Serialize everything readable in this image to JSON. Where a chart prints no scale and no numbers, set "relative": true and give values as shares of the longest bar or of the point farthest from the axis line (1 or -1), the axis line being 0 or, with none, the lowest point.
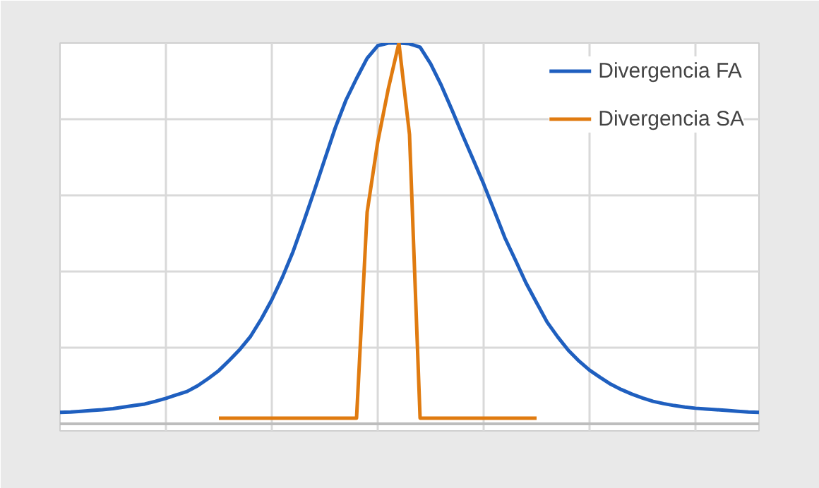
{
  "chart_data": {
    "type": "line",
    "relative": true,
    "grid": true,
    "legend": "top right",
    "categories": [
      null,
      null,
      null,
      null,
      null,
      null,
      null,
      null,
      null,
      null,
      null,
      null,
      null,
      null,
      null,
      null,
      null,
      null,
      null,
      null,
      null,
      null,
      null,
      null,
      null,
      null,
      null,
      null,
      null,
      null,
      null,
      null,
      null,
      null,
      null,
      null,
      null,
      null,
      null,
      null,
      null,
      null,
      null,
      null,
      null,
      null,
      null,
      null,
      null,
      null,
      null,
      null,
      null,
      null,
      null,
      null,
      null,
      null,
      null,
      null,
      null,
      null,
      null,
      null,
      null,
      null,
      null
    ],
    "series": [
      {
        "name": "Divergencia FA",
        "color": "#1f5fbf",
        "values": [
          0.03,
          0.031,
          0.033,
          0.035,
          0.037,
          0.04,
          0.044,
          0.048,
          0.052,
          0.059,
          0.067,
          0.076,
          0.085,
          0.1,
          0.119,
          0.14,
          0.167,
          0.196,
          0.23,
          0.275,
          0.326,
          0.385,
          0.452,
          0.53,
          0.611,
          0.695,
          0.778,
          0.85,
          0.907,
          0.96,
          0.993,
          1,
          1,
          0.998,
          0.989,
          0.945,
          0.889,
          0.825,
          0.759,
          0.695,
          0.63,
          0.56,
          0.489,
          0.43,
          0.37,
          0.318,
          0.267,
          0.228,
          0.193,
          0.165,
          0.141,
          0.122,
          0.104,
          0.09,
          0.078,
          0.068,
          0.059,
          0.053,
          0.048,
          0.044,
          0.041,
          0.039,
          0.037,
          0.035,
          0.033,
          0.031,
          0.03
        ]
      },
      {
        "name": "Divergencia SA",
        "color": "#e07b10",
        "values": [
          null,
          null,
          null,
          null,
          null,
          null,
          null,
          null,
          null,
          null,
          null,
          null,
          null,
          null,
          null,
          0.015,
          0.015,
          0.015,
          0.015,
          0.015,
          0.015,
          0.015,
          0.015,
          0.015,
          0.015,
          0.015,
          0.015,
          0.015,
          0.015,
          0.556,
          0.74,
          0.88,
          1,
          0.76,
          0.015,
          0.015,
          0.015,
          0.015,
          0.015,
          0.015,
          0.015,
          0.015,
          0.015,
          0.015,
          0.015,
          0.015,
          null,
          null,
          null,
          null,
          null,
          null,
          null,
          null,
          null,
          null,
          null,
          null,
          null,
          null,
          null,
          null,
          null,
          null,
          null,
          null,
          null
        ]
      }
    ]
  }
}
